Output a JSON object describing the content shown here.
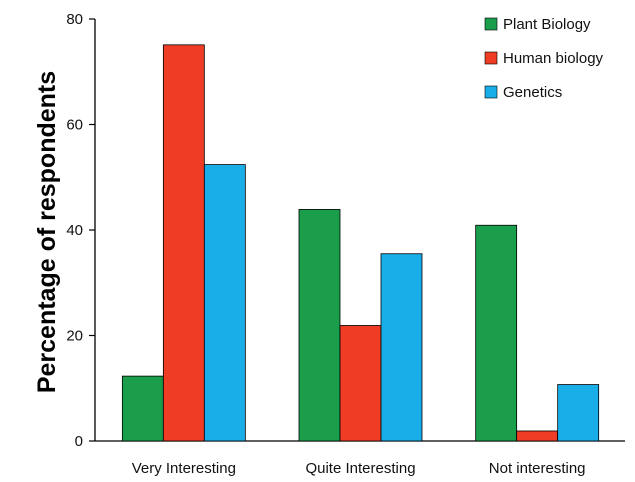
{
  "chart_data": {
    "type": "bar",
    "categories": [
      "Very Interesting",
      "Quite Interesting",
      "Not interesting"
    ],
    "series": [
      {
        "name": "Plant Biology",
        "values": [
          12.3,
          43.9,
          40.9
        ],
        "color": "#1a9e4b"
      },
      {
        "name": "Human biology",
        "values": [
          75.1,
          21.9,
          1.9
        ],
        "color": "#ee3d24"
      },
      {
        "name": "Genetics",
        "values": [
          52.4,
          35.5,
          10.7
        ],
        "color": "#19aee8"
      }
    ],
    "ylabel": "Percentage of respondents",
    "xlabel": "",
    "ylim": [
      0,
      80
    ],
    "yticks": [
      0,
      20,
      40,
      60,
      80
    ],
    "grid": false,
    "legend_position": "top-right"
  }
}
